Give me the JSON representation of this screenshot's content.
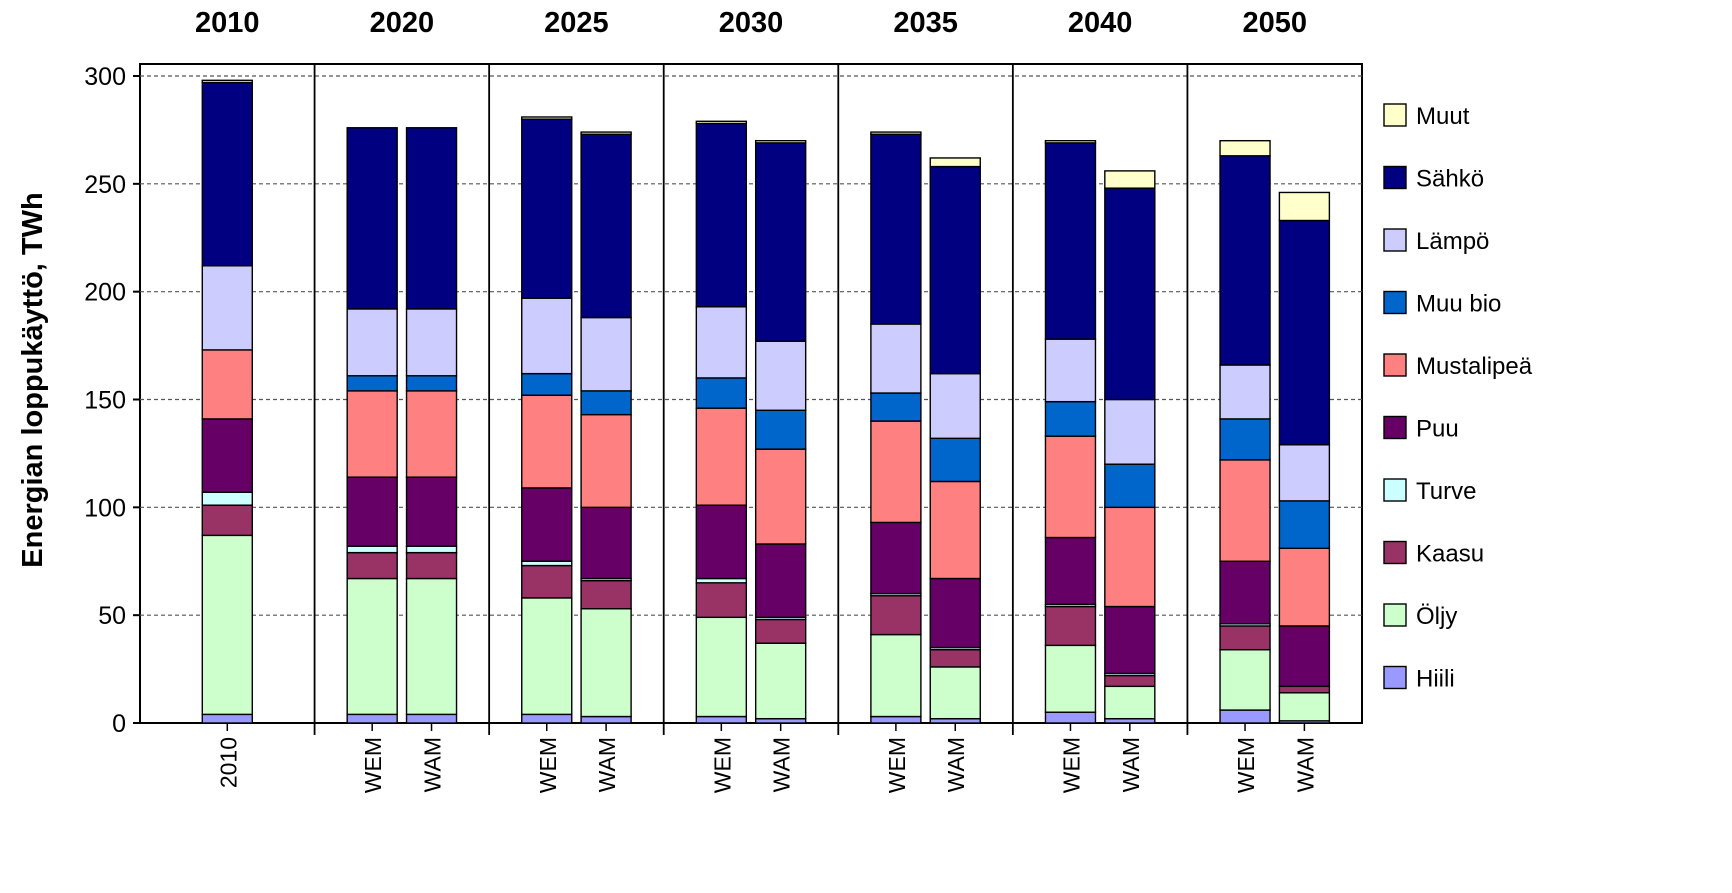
{
  "chart_data": {
    "type": "bar",
    "stacked": true,
    "ylabel": "Energian loppukäyttö, TWh",
    "ylim": [
      0,
      300
    ],
    "yticks": [
      0,
      50,
      100,
      150,
      200,
      250,
      300
    ],
    "grid": true,
    "legend_position": "right",
    "groups": [
      {
        "label": "2010",
        "bars": [
          "2010"
        ]
      },
      {
        "label": "2020",
        "bars": [
          "WEM",
          "WAM"
        ]
      },
      {
        "label": "2025",
        "bars": [
          "WEM",
          "WAM"
        ]
      },
      {
        "label": "2030",
        "bars": [
          "WEM",
          "WAM"
        ]
      },
      {
        "label": "2035",
        "bars": [
          "WEM",
          "WAM"
        ]
      },
      {
        "label": "2040",
        "bars": [
          "WEM",
          "WAM"
        ]
      },
      {
        "label": "2050",
        "bars": [
          "WEM",
          "WAM"
        ]
      }
    ],
    "series": [
      {
        "name": "Hiili",
        "color": "#9999ff",
        "values": [
          4,
          4,
          4,
          4,
          3,
          3,
          2,
          3,
          2,
          5,
          2,
          6,
          1
        ]
      },
      {
        "name": "Öljy",
        "color": "#ccffcc",
        "values": [
          83,
          63,
          63,
          54,
          50,
          46,
          35,
          38,
          24,
          31,
          15,
          28,
          13
        ]
      },
      {
        "name": "Kaasu",
        "color": "#993366",
        "values": [
          14,
          12,
          12,
          15,
          13,
          16,
          11,
          18,
          8,
          18,
          5,
          11,
          3
        ]
      },
      {
        "name": "Turve",
        "color": "#ccffff",
        "values": [
          6,
          3,
          3,
          2,
          1,
          2,
          1,
          1,
          1,
          1,
          1,
          1,
          0
        ]
      },
      {
        "name": "Puu",
        "color": "#660066",
        "values": [
          34,
          32,
          32,
          34,
          33,
          34,
          34,
          33,
          32,
          31,
          31,
          29,
          28
        ]
      },
      {
        "name": "Mustalipeä",
        "color": "#ff8080",
        "values": [
          32,
          40,
          40,
          43,
          43,
          45,
          44,
          47,
          45,
          47,
          46,
          47,
          36
        ]
      },
      {
        "name": "Muu bio",
        "color": "#0066cc",
        "values": [
          0,
          7,
          7,
          10,
          11,
          14,
          18,
          13,
          20,
          16,
          20,
          19,
          22
        ]
      },
      {
        "name": "Lämpö",
        "color": "#ccccff",
        "values": [
          39,
          31,
          31,
          35,
          34,
          33,
          32,
          32,
          30,
          29,
          30,
          25,
          26
        ]
      },
      {
        "name": "Sähkö",
        "color": "#000080",
        "values": [
          85,
          84,
          84,
          83,
          85,
          85,
          92,
          88,
          96,
          91,
          98,
          97,
          104
        ]
      },
      {
        "name": "Muut",
        "color": "#ffffcc",
        "values": [
          1,
          0,
          0,
          1,
          1,
          1,
          1,
          1,
          4,
          1,
          8,
          7,
          13
        ]
      }
    ]
  }
}
